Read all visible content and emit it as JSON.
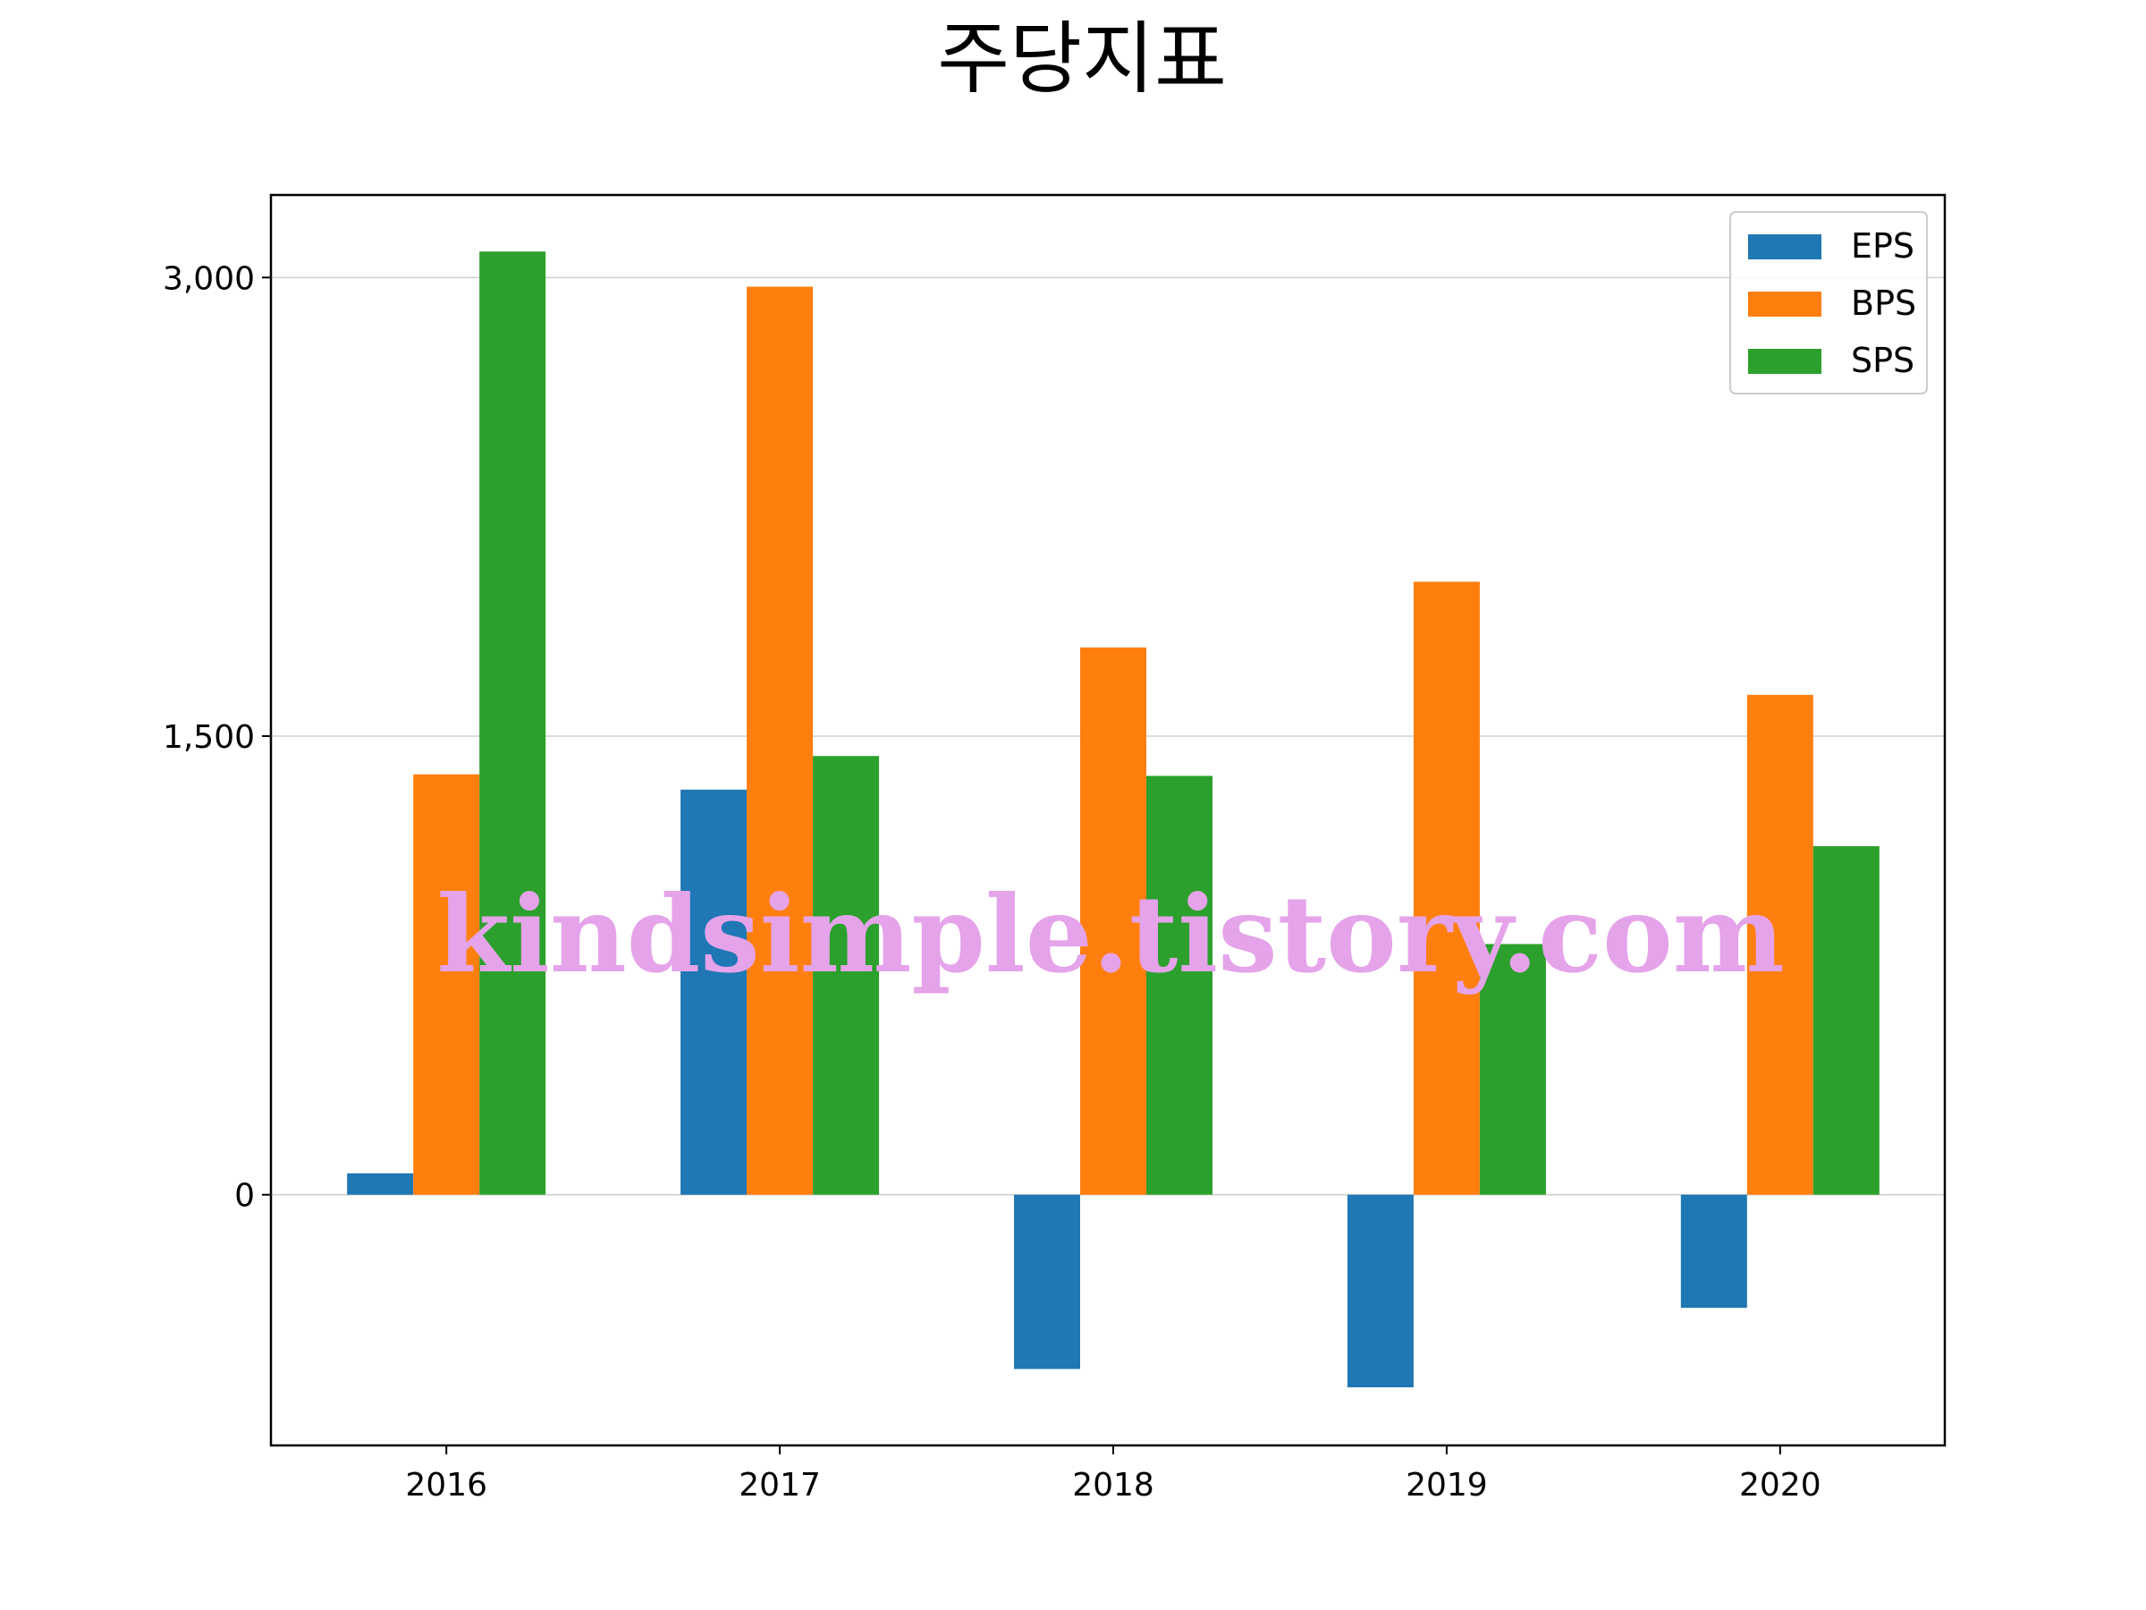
{
  "chart_data": {
    "type": "bar",
    "title": "주당지표",
    "categories": [
      "2016",
      "2017",
      "2018",
      "2019",
      "2020"
    ],
    "series": [
      {
        "name": "EPS",
        "color": "#1f77b4",
        "values": [
          70,
          1325,
          -570,
          -630,
          -370
        ]
      },
      {
        "name": "BPS",
        "color": "#ff7f0e",
        "values": [
          1375,
          2970,
          1790,
          2005,
          1635
        ]
      },
      {
        "name": "SPS",
        "color": "#2ca02c",
        "values": [
          3085,
          1435,
          1370,
          820,
          1140
        ]
      }
    ],
    "yticks": [
      0,
      1500,
      3000
    ],
    "ytick_labels": [
      "0",
      "1,500",
      "3,000"
    ],
    "ylim": [
      -820,
      3270
    ],
    "grid": "y",
    "legend_position": "top-right",
    "xlabel": "",
    "ylabel": ""
  },
  "watermark": "kindsimple.tistory.com"
}
